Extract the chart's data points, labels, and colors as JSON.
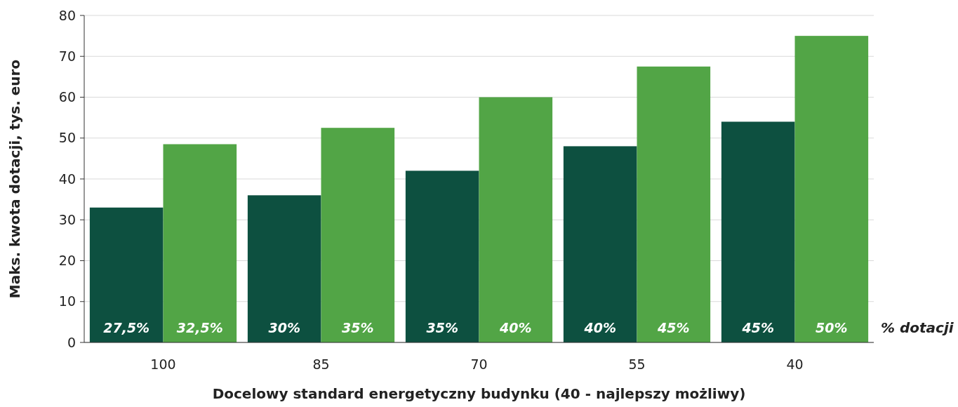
{
  "chart_data": {
    "type": "bar",
    "xlabel": "Docelowy standard energetyczny budynku (40 - najlepszy możliwy)",
    "ylabel": "Maks. kwota dotacji, tys. euro",
    "categories": [
      "100",
      "85",
      "70",
      "55",
      "40"
    ],
    "series": [
      {
        "color": "#0d5040",
        "values": [
          33,
          36,
          42,
          48,
          54
        ]
      },
      {
        "color": "#52a546",
        "values": [
          48.5,
          52.5,
          60,
          67.5,
          75
        ]
      }
    ],
    "ylim": [
      0,
      80
    ],
    "yticks": [
      0,
      10,
      20,
      30,
      40,
      50,
      60,
      70,
      80
    ],
    "grid": "y",
    "annotations": [
      "% dotacji",
      {
        "text": "27,5%",
        "x": "100",
        "y": 0
      },
      {
        "text": "32,5%",
        "x": "100",
        "y": 0
      },
      {
        "text": "30%",
        "x": "85",
        "y": 0
      },
      {
        "text": "35%",
        "x": "85",
        "y": 0
      },
      {
        "text": "35%",
        "x": "70",
        "y": 0
      },
      {
        "text": "40%",
        "x": "70",
        "y": 0
      },
      {
        "text": "40%",
        "x": "55",
        "y": 0
      },
      {
        "text": "45%",
        "x": "55",
        "y": 0
      },
      {
        "text": "45%",
        "x": "40",
        "y": 0
      },
      {
        "text": "50%",
        "x": "40",
        "y": 0
      }
    ]
  }
}
